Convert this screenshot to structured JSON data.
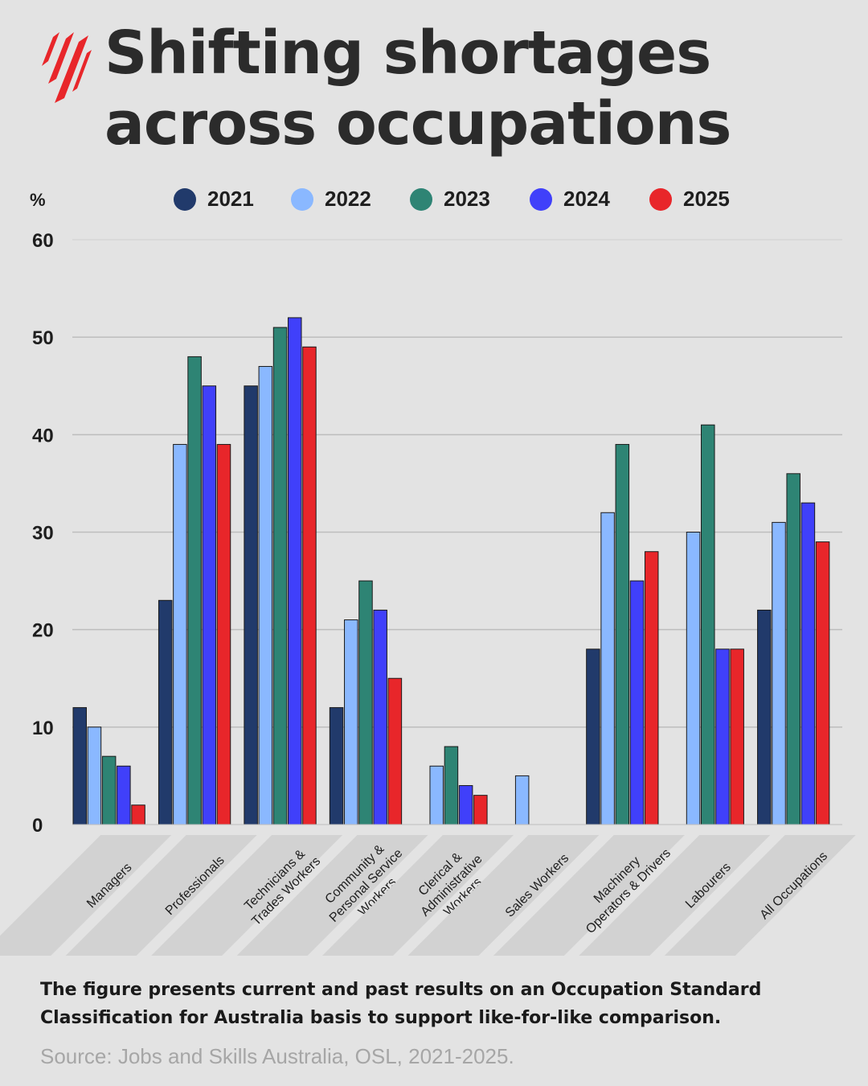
{
  "header": {
    "title_line1": "Shifting shortages",
    "title_line2": "across occupations"
  },
  "logo": {
    "icon": "sbs-logo-icon",
    "color": "#e8262a"
  },
  "chart_data": {
    "type": "bar",
    "ylabel": "%",
    "ylim": [
      0,
      60
    ],
    "yticks": [
      0,
      10,
      20,
      30,
      40,
      50,
      60
    ],
    "grid": true,
    "legend_position": "top",
    "categories": [
      "Managers",
      "Professionals",
      "Technicians & Trades Workers",
      "Community & Personal Service Workers",
      "Clerical & Administrative Workers",
      "Sales Workers",
      "Machinery Operators & Drivers",
      "Labourers",
      "All Occupations"
    ],
    "category_lines": [
      [
        "Managers"
      ],
      [
        "Professionals"
      ],
      [
        "Technicians &",
        "Trades Workers"
      ],
      [
        "Community &",
        "Personal Service",
        "Workers"
      ],
      [
        "Clerical &",
        "Administrative",
        "Workers"
      ],
      [
        "Sales Workers"
      ],
      [
        "Machinery",
        "Operators & Drivers"
      ],
      [
        "Labourers"
      ],
      [
        "All Occupations"
      ]
    ],
    "series": [
      {
        "name": "2021",
        "color": "#213a6b",
        "values": [
          12,
          23,
          45,
          12,
          0,
          0,
          18,
          0,
          22
        ]
      },
      {
        "name": "2022",
        "color": "#8ab8ff",
        "values": [
          10,
          39,
          47,
          21,
          6,
          5,
          32,
          30,
          31
        ]
      },
      {
        "name": "2023",
        "color": "#2e8474",
        "values": [
          7,
          48,
          51,
          25,
          8,
          0,
          39,
          41,
          36
        ]
      },
      {
        "name": "2024",
        "color": "#4040fa",
        "values": [
          6,
          45,
          52,
          22,
          4,
          0,
          25,
          18,
          33
        ]
      },
      {
        "name": "2025",
        "color": "#e8262a",
        "values": [
          2,
          39,
          49,
          15,
          3,
          0,
          28,
          18,
          29
        ]
      }
    ]
  },
  "footer": {
    "caption": "The figure presents current and past results on an Occupation Standard Classification for Australia basis to support like-for-like comparison.",
    "source": "Source: Jobs and Skills Australia, OSL, 2021-2025."
  }
}
